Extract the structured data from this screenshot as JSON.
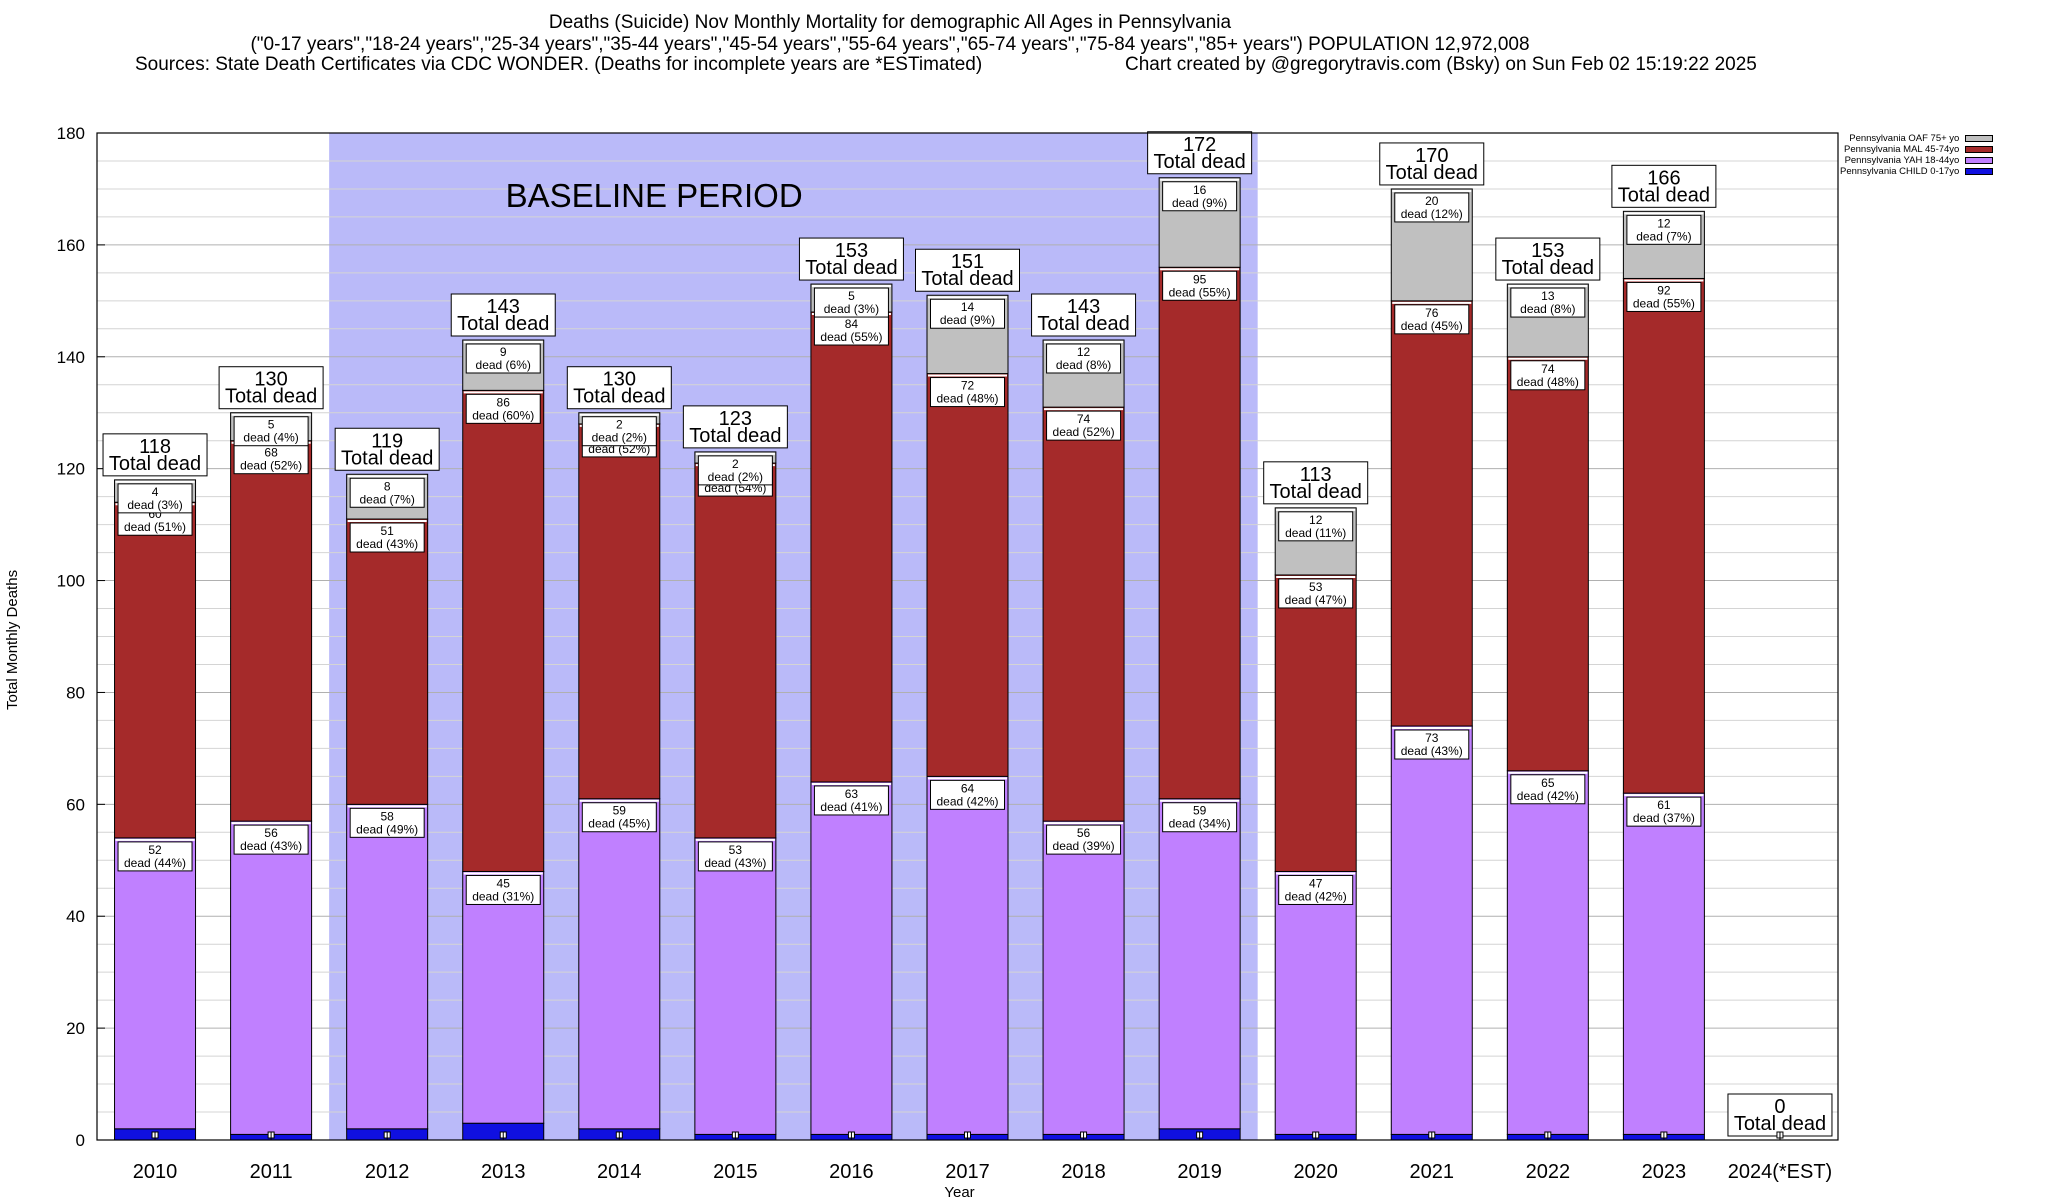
{
  "title_lines": [
    "Deaths (Suicide) Nov Monthly Mortality for demographic All Ages in Pennsylvania",
    "(\"0-17 years\",\"18-24 years\",\"25-34 years\",\"35-44 years\",\"45-54 years\",\"55-64 years\",\"65-74 years\",\"75-84 years\",\"85+ years\") POPULATION 12,972,008"
  ],
  "sources_left": "Sources: State Death Certificates via CDC WONDER. (Deaths for incomplete years are *ESTimated)",
  "sources_right": "Chart created by @gregorytravis.com (Bsky) on Sun Feb 02 15:19:22 2025",
  "chart_data": {
    "type": "bar",
    "stacked": true,
    "xlabel": "Year",
    "ylabel": "Total Monthly Deaths",
    "ylim": [
      0,
      180
    ],
    "y_ticks": [
      0,
      20,
      40,
      60,
      80,
      100,
      120,
      140,
      160,
      180
    ],
    "grid": true,
    "legend_position": "top-right, outside plot",
    "baseline_period": {
      "label": "BASELINE PERIOD",
      "from": "2012",
      "to": "2019",
      "color": "#babaf9"
    },
    "categories": [
      "2010",
      "2011",
      "2012",
      "2013",
      "2014",
      "2015",
      "2016",
      "2017",
      "2018",
      "2019",
      "2020",
      "2021",
      "2022",
      "2023",
      "2024(*EST)"
    ],
    "series": [
      {
        "name": "Pennsylvania CHILD 0-17yo",
        "color": "#1010e0",
        "values": [
          2,
          1,
          2,
          3,
          2,
          1,
          1,
          1,
          1,
          2,
          1,
          1,
          1,
          1,
          0
        ]
      },
      {
        "name": "Pennsylvania YAH 18-44yo",
        "color": "#c080ff",
        "values": [
          52,
          56,
          58,
          45,
          59,
          53,
          63,
          64,
          56,
          59,
          47,
          73,
          65,
          61,
          0
        ],
        "label_pct": [
          "44%",
          "43%",
          "49%",
          "31%",
          "45%",
          "43%",
          "41%",
          "42%",
          "39%",
          "34%",
          "42%",
          "43%",
          "42%",
          "37%",
          ""
        ]
      },
      {
        "name": "Pennsylvania MAL 45-74yo",
        "color": "#a52a2a",
        "values": [
          60,
          68,
          51,
          86,
          67,
          67,
          84,
          72,
          74,
          95,
          53,
          76,
          74,
          92,
          0
        ],
        "label_pct": [
          "51%",
          "52%",
          "43%",
          "60%",
          "52%",
          "54%",
          "55%",
          "48%",
          "52%",
          "55%",
          "47%",
          "45%",
          "48%",
          "55%",
          ""
        ]
      },
      {
        "name": "Pennsylvania OAF 75+ yo",
        "color": "#c0c0c0",
        "values": [
          4,
          5,
          8,
          9,
          2,
          2,
          5,
          14,
          12,
          16,
          12,
          20,
          13,
          12,
          0
        ],
        "label_pct": [
          "3%",
          "4%",
          "7%",
          "6%",
          "2%",
          "2%",
          "3%",
          "9%",
          "8%",
          "9%",
          "11%",
          "12%",
          "8%",
          "7%",
          ""
        ]
      }
    ],
    "totals": [
      118,
      130,
      119,
      143,
      130,
      123,
      153,
      151,
      143,
      172,
      113,
      170,
      153,
      166,
      0
    ],
    "total_suffix": "Total dead",
    "dead_word": "dead"
  }
}
